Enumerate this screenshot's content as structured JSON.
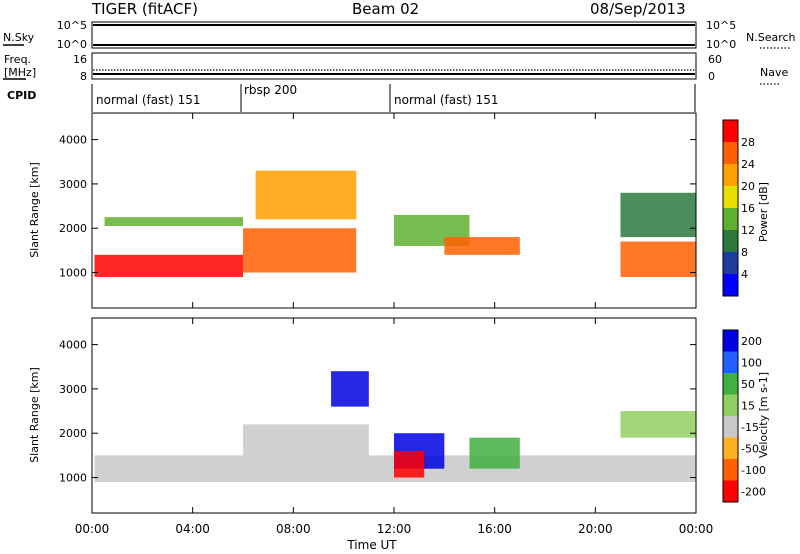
{
  "header": {
    "station": "TIGER (fitACF)",
    "beam": "Beam 02",
    "date": "08/Sep/2013"
  },
  "status_panels": {
    "nsky_label": "N.Sky",
    "nsearch_label": "N.Search",
    "freq_label_1": "Freq.",
    "freq_label_2": "[MHz]",
    "nave_label": "Nave",
    "cpid_label": "CPID",
    "nsky_ticks": [
      "10^5",
      "10^0"
    ],
    "nsearch_ticks": [
      "10^5",
      "10^0"
    ],
    "freq_ticks": [
      "16",
      "8"
    ],
    "nave_ticks": [
      "60",
      "0"
    ],
    "cpid_segments": [
      {
        "label": "normal (fast) 151",
        "start_hour": 0,
        "end_hour": 6
      },
      {
        "label": "rbsp 200",
        "start_hour": 6,
        "end_hour": 12
      },
      {
        "label": "normal (fast) 151",
        "start_hour": 12,
        "end_hour": 24
      }
    ]
  },
  "x_axis": {
    "title": "Time UT",
    "tick_labels": [
      "00:00",
      "04:00",
      "08:00",
      "12:00",
      "16:00",
      "20:00",
      "00:00"
    ],
    "range_hours": [
      0,
      24
    ]
  },
  "chart_data": [
    {
      "type": "heatmap",
      "ylabel": "Slant Range [km]",
      "ylim": [
        200,
        4600
      ],
      "y_ticks": [
        1000,
        2000,
        3000,
        4000
      ],
      "xlim": [
        0,
        24
      ],
      "colorbar": {
        "label": "Power [dB]",
        "tick_labels": [
          "28",
          "24",
          "20",
          "16",
          "12",
          "8",
          "4"
        ],
        "colors": [
          "#ff0000",
          "#ff6000",
          "#ffa000",
          "#e8e000",
          "#60b030",
          "#2a7a40",
          "#1e3c9c",
          "#0000ff"
        ]
      },
      "regions": [
        {
          "t0": 0.1,
          "t1": 6.0,
          "r0": 900,
          "r1": 1400,
          "level": 0
        },
        {
          "t0": 6.0,
          "t1": 10.5,
          "r0": 1000,
          "r1": 2000,
          "level": 1
        },
        {
          "t0": 0.5,
          "t1": 6.0,
          "r0": 2050,
          "r1": 2250,
          "level": 4
        },
        {
          "t0": 6.5,
          "t1": 10.5,
          "r0": 2200,
          "r1": 3300,
          "level": 2
        },
        {
          "t0": 12.0,
          "t1": 15.0,
          "r0": 1600,
          "r1": 2300,
          "level": 4
        },
        {
          "t0": 14.0,
          "t1": 17.0,
          "r0": 1400,
          "r1": 1800,
          "level": 1
        },
        {
          "t0": 21.0,
          "t1": 24.0,
          "r0": 900,
          "r1": 1700,
          "level": 1
        },
        {
          "t0": 21.0,
          "t1": 24.0,
          "r0": 1800,
          "r1": 2800,
          "level": 5
        }
      ]
    },
    {
      "type": "heatmap",
      "ylabel": "Slant Range [km]",
      "ylim": [
        200,
        4600
      ],
      "y_ticks": [
        1000,
        2000,
        3000,
        4000
      ],
      "xlim": [
        0,
        24
      ],
      "colorbar": {
        "label": "Velocity [m s-1]",
        "tick_labels": [
          "200",
          "100",
          "50",
          "15",
          "-15",
          "-50",
          "-100",
          "-200"
        ],
        "colors": [
          "#0000e0",
          "#2060ff",
          "#40b040",
          "#90d060",
          "#c8c8c8",
          "#ffb020",
          "#ff6000",
          "#ff0000"
        ]
      },
      "regions": [
        {
          "t0": 0.1,
          "t1": 24.0,
          "r0": 900,
          "r1": 1500,
          "level": 4
        },
        {
          "t0": 6.0,
          "t1": 11.0,
          "r0": 1500,
          "r1": 2200,
          "level": 4
        },
        {
          "t0": 9.5,
          "t1": 11.0,
          "r0": 2600,
          "r1": 3400,
          "level": 0
        },
        {
          "t0": 12.0,
          "t1": 14.0,
          "r0": 1200,
          "r1": 2000,
          "level": 0
        },
        {
          "t0": 12.0,
          "t1": 13.2,
          "r0": 1000,
          "r1": 1600,
          "level": 7
        },
        {
          "t0": 15.0,
          "t1": 17.0,
          "r0": 1200,
          "r1": 1900,
          "level": 2
        },
        {
          "t0": 21.0,
          "t1": 24.0,
          "r0": 1900,
          "r1": 2500,
          "level": 3
        }
      ]
    }
  ]
}
